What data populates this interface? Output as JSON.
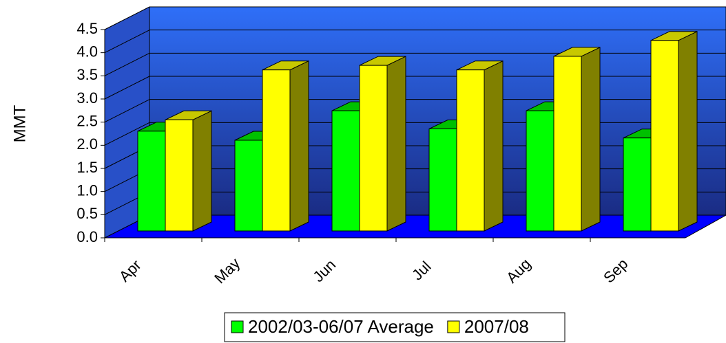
{
  "chart_data": {
    "type": "bar3d",
    "y_label": "MMT",
    "categories": [
      "Apr",
      "May",
      "Jun",
      "Jul",
      "Aug",
      "Sep"
    ],
    "series": [
      {
        "name": "2002/03-06/07 Average",
        "color": "#00ff00",
        "values": [
          2.2,
          2.0,
          2.65,
          2.25,
          2.65,
          2.05
        ]
      },
      {
        "name": "2007/08",
        "color": "#ffff00",
        "values": [
          2.45,
          3.55,
          3.65,
          3.55,
          3.85,
          4.2
        ]
      }
    ],
    "ylim": [
      0,
      4.5
    ],
    "yticks": [
      {
        "value": 0,
        "label": "0.0"
      },
      0.5,
      {
        "value": 1,
        "label": "1.0"
      },
      1.5,
      {
        "value": 2,
        "label": "2.0"
      },
      2.5,
      {
        "value": 3,
        "label": "3.0"
      },
      3.5,
      {
        "value": 4,
        "label": "4.0"
      },
      4.5
    ],
    "grid": true
  }
}
